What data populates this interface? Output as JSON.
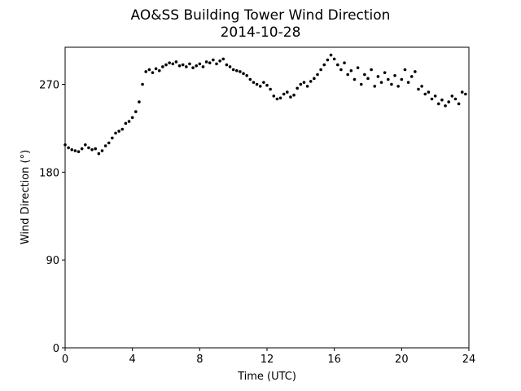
{
  "chart_data": {
    "type": "scatter",
    "title": "AO&SS Building Tower Wind Direction",
    "subtitle": "2014-10-28",
    "x_label": "Time (UTC)",
    "y_label": "Wind Direction (°)",
    "color": "#000000",
    "xlim": [
      0,
      24
    ],
    "xticks": [
      0,
      4,
      8,
      12,
      16,
      20,
      24
    ],
    "ylim": [
      0,
      308
    ],
    "yticks": [
      0,
      90,
      180,
      270
    ],
    "x": [
      0,
      0.2,
      0.4,
      0.6,
      0.8,
      1.0,
      1.2,
      1.4,
      1.6,
      1.8,
      2.0,
      2.2,
      2.4,
      2.6,
      2.8,
      3.0,
      3.2,
      3.4,
      3.6,
      3.8,
      4.0,
      4.2,
      4.4,
      4.6,
      4.8,
      5.0,
      5.2,
      5.4,
      5.6,
      5.8,
      6.0,
      6.2,
      6.4,
      6.6,
      6.8,
      7.0,
      7.2,
      7.4,
      7.6,
      7.8,
      8.0,
      8.2,
      8.4,
      8.6,
      8.8,
      9.0,
      9.2,
      9.4,
      9.6,
      9.8,
      10.0,
      10.2,
      10.4,
      10.6,
      10.8,
      11.0,
      11.2,
      11.4,
      11.6,
      11.8,
      12.0,
      12.2,
      12.4,
      12.6,
      12.8,
      13.0,
      13.2,
      13.4,
      13.6,
      13.8,
      14.0,
      14.2,
      14.4,
      14.6,
      14.8,
      15.0,
      15.2,
      15.4,
      15.6,
      15.8,
      16.0,
      16.2,
      16.4,
      16.6,
      16.8,
      17.0,
      17.2,
      17.4,
      17.6,
      17.8,
      18.0,
      18.2,
      18.4,
      18.6,
      18.8,
      19.0,
      19.2,
      19.4,
      19.6,
      19.8,
      20.0,
      20.2,
      20.4,
      20.6,
      20.8,
      21.0,
      21.2,
      21.4,
      21.6,
      21.8,
      22.0,
      22.2,
      22.4,
      22.6,
      22.8,
      23.0,
      23.2,
      23.4,
      23.6,
      23.8
    ],
    "values": [
      208,
      205,
      203,
      202,
      201,
      204,
      208,
      205,
      203,
      204,
      199,
      202,
      207,
      210,
      215,
      220,
      222,
      224,
      230,
      232,
      236,
      242,
      252,
      270,
      283,
      285,
      282,
      286,
      284,
      288,
      290,
      292,
      291,
      293,
      289,
      290,
      288,
      291,
      287,
      289,
      291,
      288,
      293,
      292,
      295,
      291,
      294,
      296,
      290,
      288,
      285,
      284,
      283,
      281,
      279,
      275,
      272,
      270,
      268,
      272,
      269,
      265,
      258,
      255,
      256,
      260,
      262,
      257,
      259,
      266,
      270,
      272,
      268,
      273,
      276,
      280,
      285,
      290,
      295,
      300,
      296,
      290,
      285,
      292,
      280,
      284,
      275,
      287,
      270,
      280,
      276,
      285,
      268,
      278,
      272,
      282,
      275,
      270,
      279,
      268,
      275,
      285,
      272,
      278,
      283,
      265,
      268,
      260,
      262,
      255,
      258,
      250,
      254,
      248,
      252,
      258,
      255,
      250,
      262,
      260
    ]
  }
}
